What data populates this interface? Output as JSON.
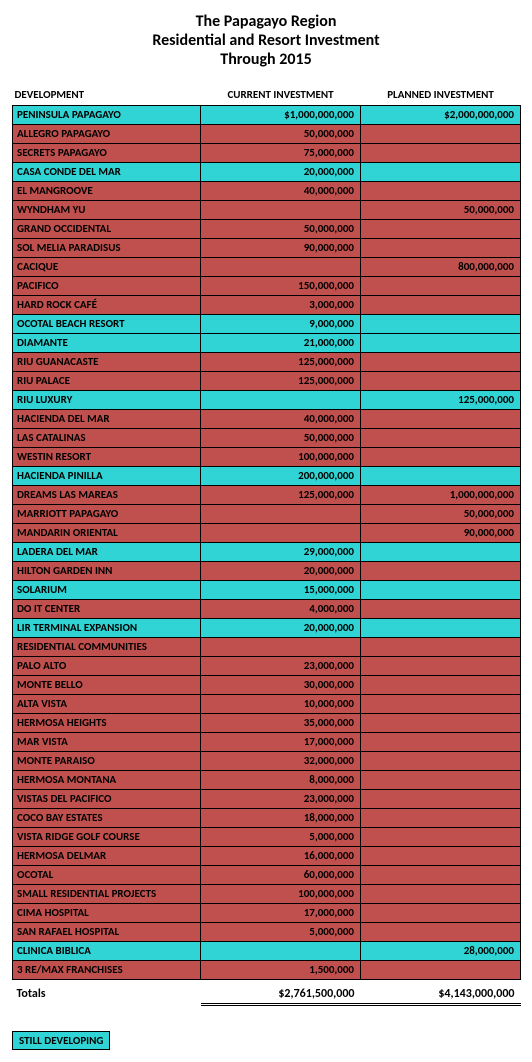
{
  "title_lines": [
    "The Papagayo Region",
    "Residential and Resort Investment",
    "Through 2015"
  ],
  "headers": {
    "dev": "DEVELOPMENT",
    "cur": "CURRENT INVESTMENT",
    "plan": "PLANNED INVESTMENT"
  },
  "col_widths": {
    "dev": 188,
    "cur": 160,
    "plan": 160
  },
  "colors": {
    "red": "#c0504d",
    "cyan": "#31d4d4",
    "border": "#000000",
    "bg": "#ffffff"
  },
  "fonts": {
    "title_size": 16,
    "body_size": 11,
    "family": "Calibri, Arial, sans-serif"
  },
  "rows": [
    {
      "dev": "PENINSULA PAPAGAYO",
      "cur": "$1,000,000,000",
      "plan": "$2,000,000,000",
      "color": "cyan"
    },
    {
      "dev": "ALLEGRO PAPAGAYO",
      "cur": "50,000,000",
      "plan": "",
      "color": "red"
    },
    {
      "dev": "SECRETS PAPAGAYO",
      "cur": "75,000,000",
      "plan": "",
      "color": "red"
    },
    {
      "dev": "CASA CONDE DEL MAR",
      "cur": "20,000,000",
      "plan": "",
      "color": "cyan"
    },
    {
      "dev": "EL MANGROOVE",
      "cur": "40,000,000",
      "plan": "",
      "color": "red"
    },
    {
      "dev": "WYNDHAM YU",
      "cur": "",
      "plan": "50,000,000",
      "color": "red"
    },
    {
      "dev": "GRAND OCCIDENTAL",
      "cur": "50,000,000",
      "plan": "",
      "color": "red"
    },
    {
      "dev": "SOL MELIA PARADISUS",
      "cur": "90,000,000",
      "plan": "",
      "color": "red"
    },
    {
      "dev": "CACIQUE",
      "cur": "",
      "plan": "800,000,000",
      "color": "red"
    },
    {
      "dev": "PACIFICO",
      "cur": "150,000,000",
      "plan": "",
      "color": "red"
    },
    {
      "dev": "HARD ROCK CAFÉ",
      "cur": "3,000,000",
      "plan": "",
      "color": "red"
    },
    {
      "dev": "OCOTAL BEACH RESORT",
      "cur": "9,000,000",
      "plan": "",
      "color": "cyan"
    },
    {
      "dev": "DIAMANTE",
      "cur": "21,000,000",
      "plan": "",
      "color": "cyan"
    },
    {
      "dev": "RIU GUANACASTE",
      "cur": "125,000,000",
      "plan": "",
      "color": "red"
    },
    {
      "dev": "RIU PALACE",
      "cur": "125,000,000",
      "plan": "",
      "color": "red"
    },
    {
      "dev": "RIU LUXURY",
      "cur": "",
      "plan": "125,000,000",
      "color": "cyan"
    },
    {
      "dev": "HACIENDA DEL MAR",
      "cur": "40,000,000",
      "plan": "",
      "color": "red"
    },
    {
      "dev": "LAS CATALINAS",
      "cur": "50,000,000",
      "plan": "",
      "color": "red"
    },
    {
      "dev": "WESTIN RESORT",
      "cur": "100,000,000",
      "plan": "",
      "color": "red"
    },
    {
      "dev": "HACIENDA PINILLA",
      "cur": "200,000,000",
      "plan": "",
      "color": "cyan"
    },
    {
      "dev": "DREAMS LAS MAREAS",
      "cur": "125,000,000",
      "plan": "1,000,000,000",
      "color": "red"
    },
    {
      "dev": "MARRIOTT PAPAGAYO",
      "cur": "",
      "plan": "50,000,000",
      "color": "red"
    },
    {
      "dev": "MANDARIN ORIENTAL",
      "cur": "",
      "plan": "90,000,000",
      "color": "red"
    },
    {
      "dev": "LADERA DEL MAR",
      "cur": "29,000,000",
      "plan": "",
      "color": "cyan"
    },
    {
      "dev": "HILTON GARDEN INN",
      "cur": "20,000,000",
      "plan": "",
      "color": "red"
    },
    {
      "dev": "SOLARIUM",
      "cur": "15,000,000",
      "plan": "",
      "color": "cyan"
    },
    {
      "dev": "DO IT CENTER",
      "cur": "4,000,000",
      "plan": "",
      "color": "red"
    },
    {
      "dev": "LIR TERMINAL EXPANSION",
      "cur": "20,000,000",
      "plan": "",
      "color": "cyan"
    },
    {
      "dev": "RESIDENTIAL COMMUNITIES",
      "cur": "",
      "plan": "",
      "color": "red"
    },
    {
      "dev": "PALO ALTO",
      "cur": "23,000,000",
      "plan": "",
      "color": "red"
    },
    {
      "dev": "MONTE BELLO",
      "cur": "30,000,000",
      "plan": "",
      "color": "red"
    },
    {
      "dev": "ALTA VISTA",
      "cur": "10,000,000",
      "plan": "",
      "color": "red"
    },
    {
      "dev": "HERMOSA HEIGHTS",
      "cur": "35,000,000",
      "plan": "",
      "color": "red"
    },
    {
      "dev": "MAR VISTA",
      "cur": "17,000,000",
      "plan": "",
      "color": "red"
    },
    {
      "dev": "MONTE PARAISO",
      "cur": "32,000,000",
      "plan": "",
      "color": "red"
    },
    {
      "dev": "HERMOSA MONTANA",
      "cur": "8,000,000",
      "plan": "",
      "color": "red"
    },
    {
      "dev": "VISTAS DEL PACIFICO",
      "cur": "23,000,000",
      "plan": "",
      "color": "red"
    },
    {
      "dev": "COCO BAY ESTATES",
      "cur": "18,000,000",
      "plan": "",
      "color": "red"
    },
    {
      "dev": "VISTA RIDGE GOLF COURSE",
      "cur": "5,000,000",
      "plan": "",
      "color": "red"
    },
    {
      "dev": "HERMOSA DELMAR",
      "cur": "16,000,000",
      "plan": "",
      "color": "red"
    },
    {
      "dev": "OCOTAL",
      "cur": "60,000,000",
      "plan": "",
      "color": "red"
    },
    {
      "dev": "SMALL RESIDENTIAL PROJECTS",
      "cur": "100,000,000",
      "plan": "",
      "color": "red"
    },
    {
      "dev": "CIMA HOSPITAL",
      "cur": "17,000,000",
      "plan": "",
      "color": "red"
    },
    {
      "dev": "SAN RAFAEL HOSPITAL",
      "cur": "5,000,000",
      "plan": "",
      "color": "red"
    },
    {
      "dev": "CLINICA BIBLICA",
      "cur": "",
      "plan": "28,000,000",
      "color": "cyan"
    },
    {
      "dev": "3 RE/MAX FRANCHISES",
      "cur": "1,500,000",
      "plan": "",
      "color": "red"
    }
  ],
  "totals": {
    "label": "Totals",
    "cur": "$2,761,500,000",
    "plan": "$4,143,000,000"
  },
  "legend": {
    "label": "STILL DEVELOPING"
  }
}
